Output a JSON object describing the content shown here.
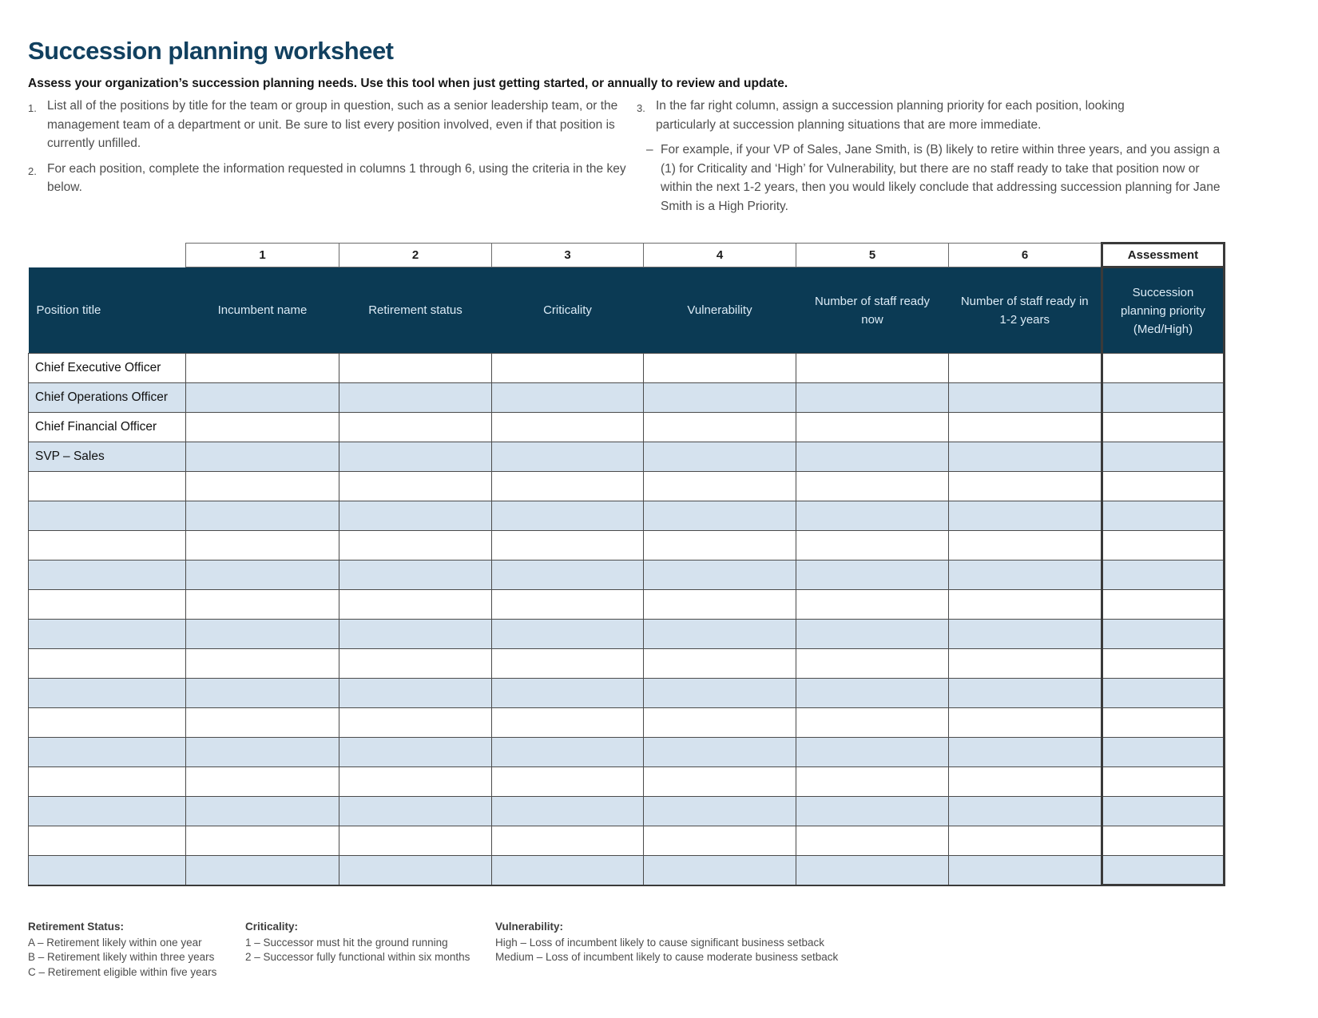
{
  "title": "Succession planning  worksheet",
  "subtitle": "Assess your organization’s succession planning needs. Use this tool when just getting started, or annually to review and update.",
  "instructions": {
    "num1": "1.",
    "item1": "List all of the positions by title for the team or group in question, such as a senior leadership team, or the management team of a department or unit. Be sure to list every position involved, even if that position is currently unfilled.",
    "num2": "2.",
    "item2": "For each position, complete the information requested in columns 1 through 6, using the criteria in the key below.",
    "num3": "3.",
    "item3": "In the far right column, assign a succession planning priority for each position, looking particularly at succession planning situations that are more  immediate.",
    "example_dash": "–",
    "item3_example": "For example, if your VP of Sales, Jane Smith, is (B) likely to retire within three years, and you assign a (1) for Criticality and ‘High’ for Vulnerability, but there are no staff ready to take that position now or within the next 1-2 years, then you would likely conclude that addressing succession planning for Jane Smith is a High Priority."
  },
  "table": {
    "column_numbers": [
      "1",
      "2",
      "3",
      "4",
      "5",
      "6"
    ],
    "assessment_label": "Assessment",
    "headers": [
      "Position title",
      "Incumbent name",
      "Retirement status",
      "Criticality",
      "Vulnerability",
      "Number of staff ready now",
      "Number of staff ready in 1-2 years",
      "Succession planning priority (Med/High)"
    ],
    "rows": [
      "Chief Executive Officer",
      "Chief Operations Officer",
      "Chief Financial Officer",
      "SVP – Sales",
      "",
      "",
      "",
      "",
      "",
      "",
      "",
      "",
      "",
      "",
      "",
      "",
      "",
      ""
    ]
  },
  "key": {
    "retirement": {
      "heading": "Retirement Status:",
      "items": [
        "A – Retirement likely within one year",
        "B – Retirement likely within three years",
        "C – Retirement eligible within five years"
      ]
    },
    "criticality": {
      "heading": "Criticality:",
      "items": [
        "1 – Successor must hit the ground running",
        "2 – Successor fully functional within six  months"
      ]
    },
    "vulnerability": {
      "heading": "Vulnerability:",
      "items": [
        "High – Loss of incumbent likely to cause significant business setback",
        "Medium – Loss of incumbent likely to cause moderate business setback"
      ]
    }
  },
  "colors": {
    "title_text": "#11405f",
    "header_bg": "#0b3a54",
    "header_text": "#dcebf6",
    "row_alt_bg": "#d5e2ee",
    "thick_border": "#3a3a3a",
    "cell_border": "#4b4b4b",
    "body_text": "#4d4d4d"
  }
}
